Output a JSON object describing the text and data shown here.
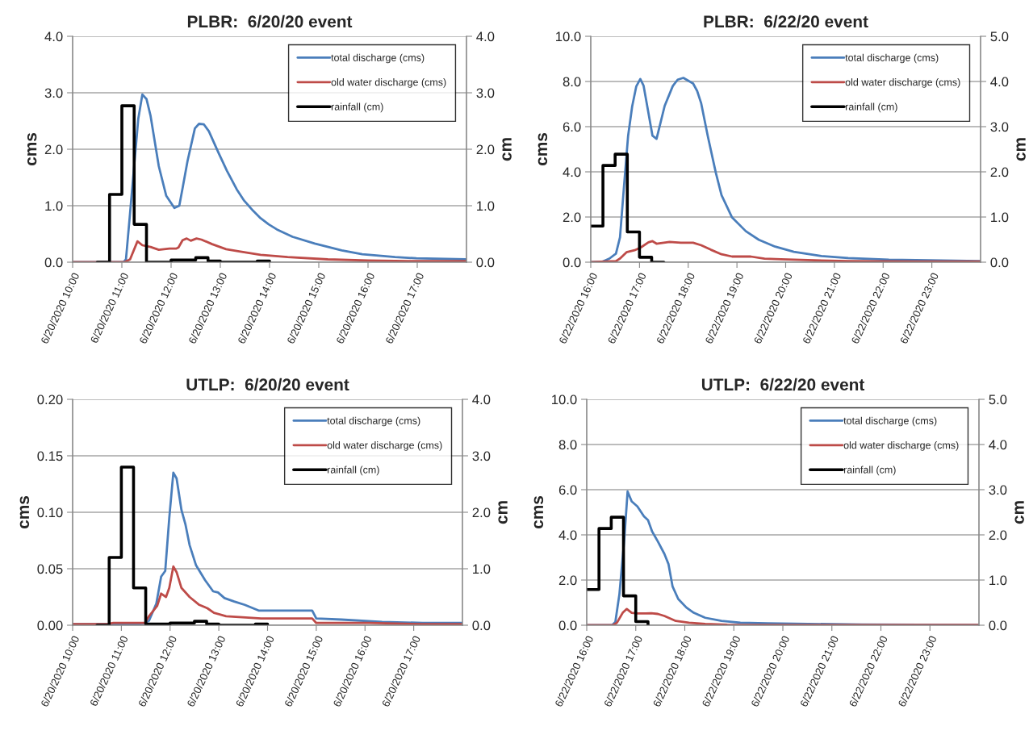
{
  "chart_data": [
    {
      "type": "line",
      "title": "PLBR:  6/20/20 event",
      "ylabel": "cms",
      "y2label": "cm",
      "grid": "y",
      "legend": "top right",
      "xlim": [
        "2020-06-20T10:00",
        "2020-06-20T18:00"
      ],
      "xticks": [
        {
          "value": "2020-06-20T10:00",
          "label": "6/20/2020 10:00"
        },
        {
          "value": "2020-06-20T11:00",
          "label": "6/20/2020 11:00"
        },
        {
          "value": "2020-06-20T12:00",
          "label": "6/20/2020 12:00"
        },
        {
          "value": "2020-06-20T13:00",
          "label": "6/20/2020 13:00"
        },
        {
          "value": "2020-06-20T14:00",
          "label": "6/20/2020 14:00"
        },
        {
          "value": "2020-06-20T15:00",
          "label": "6/20/2020 15:00"
        },
        {
          "value": "2020-06-20T16:00",
          "label": "6/20/2020 16:00"
        },
        {
          "value": "2020-06-20T17:00",
          "label": "6/20/2020 17:00"
        }
      ],
      "ylim": [
        0,
        4
      ],
      "yticks": [
        {
          "value": 0,
          "label": "0.0"
        },
        {
          "value": 1,
          "label": "1.0"
        },
        {
          "value": 2,
          "label": "2.0"
        },
        {
          "value": 3,
          "label": "3.0"
        },
        {
          "value": 4,
          "label": "4.0"
        }
      ],
      "y2lim": [
        0,
        4
      ],
      "y2ticks": [
        {
          "value": 0,
          "label": "0.0"
        },
        {
          "value": 1,
          "label": "1.0"
        },
        {
          "value": 2,
          "label": "2.0"
        },
        {
          "value": 3,
          "label": "3.0"
        },
        {
          "value": 4,
          "label": "4.0"
        }
      ],
      "series": [
        {
          "name": "total discharge (cms)",
          "color": "#4a7ebb",
          "x": [
            "2020-06-20T10:00",
            "2020-06-20T11:02",
            "2020-06-20T11:05",
            "2020-06-20T11:10",
            "2020-06-20T11:20",
            "2020-06-20T11:25",
            "2020-06-20T11:30",
            "2020-06-20T11:35",
            "2020-06-20T11:45",
            "2020-06-20T11:54",
            "2020-06-20T12:04",
            "2020-06-20T12:10",
            "2020-06-20T12:14",
            "2020-06-20T12:20",
            "2020-06-20T12:29",
            "2020-06-20T12:34",
            "2020-06-20T12:40",
            "2020-06-20T12:46",
            "2020-06-20T12:58",
            "2020-06-20T13:08",
            "2020-06-20T13:20",
            "2020-06-20T13:29",
            "2020-06-20T13:40",
            "2020-06-20T13:49",
            "2020-06-20T13:59",
            "2020-06-20T14:09",
            "2020-06-20T14:28",
            "2020-06-20T14:55",
            "2020-06-20T15:28",
            "2020-06-20T15:53",
            "2020-06-20T16:33",
            "2020-06-20T16:59",
            "2020-06-20T17:59"
          ],
          "values": [
            0,
            0,
            0.05,
            0.87,
            2.54,
            2.97,
            2.89,
            2.59,
            1.7,
            1.18,
            0.96,
            1.0,
            1.31,
            1.79,
            2.37,
            2.45,
            2.44,
            2.32,
            1.93,
            1.62,
            1.29,
            1.09,
            0.91,
            0.78,
            0.67,
            0.58,
            0.45,
            0.33,
            0.21,
            0.14,
            0.09,
            0.07,
            0.05
          ]
        },
        {
          "name": "old water discharge (cms)",
          "color": "#be4b48",
          "x": [
            "2020-06-20T10:00",
            "2020-06-20T11:03",
            "2020-06-20T11:10",
            "2020-06-20T11:19",
            "2020-06-20T11:25",
            "2020-06-20T11:35",
            "2020-06-20T11:45",
            "2020-06-20T11:58",
            "2020-06-20T12:06",
            "2020-06-20T12:09",
            "2020-06-20T12:14",
            "2020-06-20T12:19",
            "2020-06-20T12:24",
            "2020-06-20T12:31",
            "2020-06-20T12:37",
            "2020-06-20T12:50",
            "2020-06-20T13:07",
            "2020-06-20T13:23",
            "2020-06-20T13:49",
            "2020-06-20T14:22",
            "2020-06-20T15:11",
            "2020-06-20T16:00",
            "2020-06-20T16:49",
            "2020-06-20T17:59"
          ],
          "values": [
            0,
            0,
            0.05,
            0.37,
            0.3,
            0.27,
            0.22,
            0.24,
            0.24,
            0.26,
            0.39,
            0.42,
            0.38,
            0.42,
            0.4,
            0.32,
            0.23,
            0.19,
            0.13,
            0.09,
            0.05,
            0.03,
            0.02,
            0.02
          ]
        },
        {
          "name": "rainfall (cm)",
          "type": "step",
          "axis": "y2",
          "color": "#000000",
          "x": [
            "2020-06-20T10:30",
            "2020-06-20T10:45",
            "2020-06-20T11:00",
            "2020-06-20T11:15",
            "2020-06-20T11:30",
            "2020-06-20T11:45",
            "2020-06-20T12:00",
            "2020-06-20T12:15",
            "2020-06-20T12:30",
            "2020-06-20T12:45",
            "2020-06-20T13:00",
            "2020-06-20T13:15",
            "2020-06-20T13:30",
            "2020-06-20T13:45",
            "2020-06-20T14:00"
          ],
          "values": [
            0,
            1.2,
            2.77,
            0.67,
            0,
            0,
            0.04,
            0.04,
            0.08,
            0.02,
            0,
            0,
            0,
            0.02,
            0.02
          ]
        }
      ]
    },
    {
      "type": "line",
      "title": "PLBR:  6/22/20 event",
      "ylabel": "cms",
      "y2label": "cm",
      "grid": "y",
      "legend": "top right",
      "xlim": [
        "2020-06-22T16:00",
        "2020-06-23T00:00"
      ],
      "xticks": [
        {
          "value": "2020-06-22T16:00",
          "label": "6/22/2020 16:00"
        },
        {
          "value": "2020-06-22T17:00",
          "label": "6/22/2020 17:00"
        },
        {
          "value": "2020-06-22T18:00",
          "label": "6/22/2020 18:00"
        },
        {
          "value": "2020-06-22T19:00",
          "label": "6/22/2020 19:00"
        },
        {
          "value": "2020-06-22T20:00",
          "label": "6/22/2020 20:00"
        },
        {
          "value": "2020-06-22T21:00",
          "label": "6/22/2020 21:00"
        },
        {
          "value": "2020-06-22T22:00",
          "label": "6/22/2020 22:00"
        },
        {
          "value": "2020-06-22T23:00",
          "label": "6/22/2020 23:00"
        }
      ],
      "ylim": [
        0,
        10
      ],
      "yticks": [
        {
          "value": 0,
          "label": "0.0"
        },
        {
          "value": 2,
          "label": "2.0"
        },
        {
          "value": 4,
          "label": "4.0"
        },
        {
          "value": 6,
          "label": "6.0"
        },
        {
          "value": 8,
          "label": "8.0"
        },
        {
          "value": 10,
          "label": "10.0"
        }
      ],
      "y2lim": [
        0,
        5
      ],
      "y2ticks": [
        {
          "value": 0,
          "label": "0.0"
        },
        {
          "value": 1,
          "label": "1.0"
        },
        {
          "value": 2,
          "label": "2.0"
        },
        {
          "value": 3,
          "label": "3.0"
        },
        {
          "value": 4,
          "label": "4.0"
        },
        {
          "value": 5,
          "label": "5.0"
        }
      ],
      "series": [
        {
          "name": "total discharge (cms)",
          "color": "#4a7ebb",
          "x": [
            "2020-06-22T16:00",
            "2020-06-22T16:14",
            "2020-06-22T16:23",
            "2020-06-22T16:31",
            "2020-06-22T16:36",
            "2020-06-22T16:41",
            "2020-06-22T16:46",
            "2020-06-22T16:51",
            "2020-06-22T16:56",
            "2020-06-22T17:01",
            "2020-06-22T17:05",
            "2020-06-22T17:10",
            "2020-06-22T17:16",
            "2020-06-22T17:21",
            "2020-06-22T17:31",
            "2020-06-22T17:41",
            "2020-06-22T17:47",
            "2020-06-22T17:54",
            "2020-06-22T18:06",
            "2020-06-22T18:11",
            "2020-06-22T18:16",
            "2020-06-22T18:24",
            "2020-06-22T18:34",
            "2020-06-22T18:41",
            "2020-06-22T18:54",
            "2020-06-22T19:11",
            "2020-06-22T19:27",
            "2020-06-22T19:47",
            "2020-06-22T20:10",
            "2020-06-22T20:44",
            "2020-06-22T21:17",
            "2020-06-22T22:07",
            "2020-06-22T22:57",
            "2020-06-22T23:59"
          ],
          "values": [
            0,
            0.02,
            0.16,
            0.38,
            1.1,
            3.4,
            5.6,
            6.9,
            7.78,
            8.11,
            7.82,
            6.81,
            5.6,
            5.46,
            6.92,
            7.8,
            8.08,
            8.16,
            7.91,
            7.58,
            7.03,
            5.6,
            3.96,
            2.97,
            1.98,
            1.37,
            0.99,
            0.69,
            0.46,
            0.27,
            0.18,
            0.11,
            0.08,
            0.05
          ]
        },
        {
          "name": "old water discharge (cms)",
          "color": "#be4b48",
          "x": [
            "2020-06-22T16:00",
            "2020-06-22T16:31",
            "2020-06-22T16:36",
            "2020-06-22T16:44",
            "2020-06-22T16:54",
            "2020-06-22T17:02",
            "2020-06-22T17:11",
            "2020-06-22T17:16",
            "2020-06-22T17:21",
            "2020-06-22T17:37",
            "2020-06-22T17:51",
            "2020-06-22T18:06",
            "2020-06-22T18:16",
            "2020-06-22T18:28",
            "2020-06-22T18:41",
            "2020-06-22T18:54",
            "2020-06-22T19:17",
            "2020-06-22T19:34",
            "2020-06-22T19:54",
            "2020-06-22T20:27",
            "2020-06-22T21:17",
            "2020-06-22T22:40",
            "2020-06-22T23:59"
          ],
          "values": [
            0,
            0.05,
            0.16,
            0.44,
            0.53,
            0.66,
            0.88,
            0.93,
            0.82,
            0.9,
            0.86,
            0.86,
            0.75,
            0.55,
            0.35,
            0.25,
            0.25,
            0.16,
            0.13,
            0.09,
            0.05,
            0.03,
            0.03
          ]
        },
        {
          "name": "rainfall (cm)",
          "type": "step",
          "axis": "y2",
          "color": "#000000",
          "x": [
            "2020-06-22T16:00",
            "2020-06-22T16:15",
            "2020-06-22T16:30",
            "2020-06-22T16:45",
            "2020-06-22T17:00",
            "2020-06-22T17:15",
            "2020-06-22T17:30"
          ],
          "values": [
            0.8,
            2.14,
            2.39,
            0.67,
            0.11,
            0,
            0
          ]
        }
      ]
    },
    {
      "type": "line",
      "title": "UTLP:  6/20/20 event",
      "ylabel": "cms",
      "y2label": "cm",
      "grid": "y",
      "legend": "top right",
      "xlim": [
        "2020-06-20T10:00",
        "2020-06-20T18:00"
      ],
      "xticks": [
        {
          "value": "2020-06-20T10:00",
          "label": "6/20/2020 10:00"
        },
        {
          "value": "2020-06-20T11:00",
          "label": "6/20/2020 11:00"
        },
        {
          "value": "2020-06-20T12:00",
          "label": "6/20/2020 12:00"
        },
        {
          "value": "2020-06-20T13:00",
          "label": "6/20/2020 13:00"
        },
        {
          "value": "2020-06-20T14:00",
          "label": "6/20/2020 14:00"
        },
        {
          "value": "2020-06-20T15:00",
          "label": "6/20/2020 15:00"
        },
        {
          "value": "2020-06-20T16:00",
          "label": "6/20/2020 16:00"
        },
        {
          "value": "2020-06-20T17:00",
          "label": "6/20/2020 17:00"
        }
      ],
      "ylim": [
        0,
        0.2
      ],
      "yticks": [
        {
          "value": 0,
          "label": "0.00"
        },
        {
          "value": 0.05,
          "label": "0.05"
        },
        {
          "value": 0.1,
          "label": "0.10"
        },
        {
          "value": 0.15,
          "label": "0.15"
        },
        {
          "value": 0.2,
          "label": "0.20"
        }
      ],
      "y2lim": [
        0,
        4
      ],
      "y2ticks": [
        {
          "value": 0,
          "label": "0.0"
        },
        {
          "value": 1,
          "label": "1.0"
        },
        {
          "value": 2,
          "label": "2.0"
        },
        {
          "value": 3,
          "label": "3.0"
        },
        {
          "value": 4,
          "label": "4.0"
        }
      ],
      "series": [
        {
          "name": "total discharge (cms)",
          "color": "#4a7ebb",
          "x": [
            "2020-06-20T10:00",
            "2020-06-20T11:23",
            "2020-06-20T11:29",
            "2020-06-20T11:34",
            "2020-06-20T11:43",
            "2020-06-20T11:49",
            "2020-06-20T11:54",
            "2020-06-20T11:59",
            "2020-06-20T12:04",
            "2020-06-20T12:08",
            "2020-06-20T12:14",
            "2020-06-20T12:19",
            "2020-06-20T12:24",
            "2020-06-20T12:32",
            "2020-06-20T12:43",
            "2020-06-20T12:53",
            "2020-06-20T12:59",
            "2020-06-20T13:07",
            "2020-06-20T13:19",
            "2020-06-20T13:32",
            "2020-06-20T13:49",
            "2020-06-20T13:59",
            "2020-06-20T14:55",
            "2020-06-20T15:00",
            "2020-06-20T15:31",
            "2020-06-20T16:21",
            "2020-06-20T17:11",
            "2020-06-20T17:59"
          ],
          "values": [
            0.001,
            0.001,
            0.002,
            0.004,
            0.019,
            0.043,
            0.048,
            0.095,
            0.135,
            0.13,
            0.102,
            0.089,
            0.071,
            0.053,
            0.04,
            0.03,
            0.029,
            0.024,
            0.021,
            0.018,
            0.013,
            0.013,
            0.013,
            0.006,
            0.005,
            0.003,
            0.002,
            0.002
          ]
        },
        {
          "name": "old water discharge (cms)",
          "color": "#be4b48",
          "x": [
            "2020-06-20T10:00",
            "2020-06-20T10:43",
            "2020-06-20T10:50",
            "2020-06-20T11:25",
            "2020-06-20T11:29",
            "2020-06-20T11:34",
            "2020-06-20T11:44",
            "2020-06-20T11:49",
            "2020-06-20T11:55",
            "2020-06-20T11:59",
            "2020-06-20T12:04",
            "2020-06-20T12:08",
            "2020-06-20T12:14",
            "2020-06-20T12:24",
            "2020-06-20T12:36",
            "2020-06-20T12:46",
            "2020-06-20T12:54",
            "2020-06-20T13:09",
            "2020-06-20T13:29",
            "2020-06-20T13:52",
            "2020-06-20T14:55",
            "2020-06-20T15:00",
            "2020-06-20T16:05",
            "2020-06-20T17:11",
            "2020-06-20T17:59"
          ],
          "values": [
            0.001,
            0.001,
            0.002,
            0.002,
            0.002,
            0.008,
            0.017,
            0.028,
            0.025,
            0.033,
            0.052,
            0.047,
            0.033,
            0.025,
            0.018,
            0.015,
            0.011,
            0.008,
            0.007,
            0.006,
            0.006,
            0.002,
            0.002,
            0.001,
            0.001
          ]
        },
        {
          "name": "rainfall (cm)",
          "type": "step",
          "axis": "y2",
          "color": "#000000",
          "x": [
            "2020-06-20T10:30",
            "2020-06-20T10:45",
            "2020-06-20T11:00",
            "2020-06-20T11:15",
            "2020-06-20T11:30",
            "2020-06-20T11:45",
            "2020-06-20T12:00",
            "2020-06-20T12:15",
            "2020-06-20T12:30",
            "2020-06-20T12:45",
            "2020-06-20T13:00",
            "2020-06-20T13:15",
            "2020-06-20T13:30",
            "2020-06-20T13:45",
            "2020-06-20T14:00"
          ],
          "values": [
            0,
            1.2,
            2.8,
            0.66,
            0.02,
            0.02,
            0.04,
            0.04,
            0.07,
            0.02,
            0,
            0,
            0,
            0.02,
            0.02
          ]
        }
      ]
    },
    {
      "type": "line",
      "title": "UTLP:  6/22/20 event",
      "ylabel": "cms",
      "y2label": "cm",
      "grid": "y",
      "legend": "top right",
      "xlim": [
        "2020-06-22T16:00",
        "2020-06-23T00:00"
      ],
      "xticks": [
        {
          "value": "2020-06-22T16:00",
          "label": "6/22/2020 16:00"
        },
        {
          "value": "2020-06-22T17:00",
          "label": "6/22/2020 17:00"
        },
        {
          "value": "2020-06-22T18:00",
          "label": "6/22/2020 18:00"
        },
        {
          "value": "2020-06-22T19:00",
          "label": "6/22/2020 19:00"
        },
        {
          "value": "2020-06-22T20:00",
          "label": "6/22/2020 20:00"
        },
        {
          "value": "2020-06-22T21:00",
          "label": "6/22/2020 21:00"
        },
        {
          "value": "2020-06-22T22:00",
          "label": "6/22/2020 22:00"
        },
        {
          "value": "2020-06-22T23:00",
          "label": "6/22/2020 23:00"
        }
      ],
      "ylim": [
        0,
        10
      ],
      "yticks": [
        {
          "value": 0,
          "label": "0.0"
        },
        {
          "value": 2,
          "label": "2.0"
        },
        {
          "value": 4,
          "label": "4.0"
        },
        {
          "value": 6,
          "label": "6.0"
        },
        {
          "value": 8,
          "label": "8.0"
        },
        {
          "value": 10,
          "label": "10.0"
        }
      ],
      "y2lim": [
        0,
        5
      ],
      "y2ticks": [
        {
          "value": 0,
          "label": "0.0"
        },
        {
          "value": 1,
          "label": "1.0"
        },
        {
          "value": 2,
          "label": "2.0"
        },
        {
          "value": 3,
          "label": "3.0"
        },
        {
          "value": 4,
          "label": "4.0"
        },
        {
          "value": 5,
          "label": "5.0"
        }
      ],
      "series": [
        {
          "name": "total discharge (cms)",
          "color": "#4a7ebb",
          "x": [
            "2020-06-22T16:00",
            "2020-06-22T16:31",
            "2020-06-22T16:35",
            "2020-06-22T16:40",
            "2020-06-22T16:46",
            "2020-06-22T16:50",
            "2020-06-22T16:55",
            "2020-06-22T17:02",
            "2020-06-22T17:10",
            "2020-06-22T17:15",
            "2020-06-22T17:20",
            "2020-06-22T17:27",
            "2020-06-22T17:35",
            "2020-06-22T17:40",
            "2020-06-22T17:45",
            "2020-06-22T17:52",
            "2020-06-22T18:02",
            "2020-06-22T18:11",
            "2020-06-22T18:25",
            "2020-06-22T18:45",
            "2020-06-22T19:08",
            "2020-06-22T19:41",
            "2020-06-22T20:31",
            "2020-06-22T21:37",
            "2020-06-22T23:59"
          ],
          "values": [
            0,
            0,
            0.14,
            1.38,
            3.82,
            5.92,
            5.48,
            5.26,
            4.82,
            4.65,
            4.15,
            3.71,
            3.16,
            2.71,
            1.72,
            1.16,
            0.78,
            0.55,
            0.33,
            0.19,
            0.11,
            0.08,
            0.06,
            0.03,
            0.01
          ]
        },
        {
          "name": "old water discharge (cms)",
          "color": "#be4b48",
          "x": [
            "2020-06-22T16:00",
            "2020-06-22T16:32",
            "2020-06-22T16:37",
            "2020-06-22T16:44",
            "2020-06-22T16:49",
            "2020-06-22T16:55",
            "2020-06-22T17:02",
            "2020-06-22T17:12",
            "2020-06-22T17:19",
            "2020-06-22T17:27",
            "2020-06-22T17:35",
            "2020-06-22T17:49",
            "2020-06-22T18:05",
            "2020-06-22T18:25",
            "2020-06-22T18:52",
            "2020-06-22T23:59"
          ],
          "values": [
            0,
            0,
            0.11,
            0.55,
            0.72,
            0.55,
            0.52,
            0.52,
            0.53,
            0.5,
            0.41,
            0.19,
            0.11,
            0.06,
            0.02,
            0.01
          ]
        },
        {
          "name": "rainfall (cm)",
          "type": "step",
          "axis": "y2",
          "color": "#000000",
          "x": [
            "2020-06-22T16:00",
            "2020-06-22T16:15",
            "2020-06-22T16:30",
            "2020-06-22T16:45",
            "2020-06-22T17:00",
            "2020-06-22T17:15"
          ],
          "values": [
            0.79,
            2.14,
            2.39,
            0.65,
            0.08,
            0
          ]
        }
      ]
    }
  ]
}
